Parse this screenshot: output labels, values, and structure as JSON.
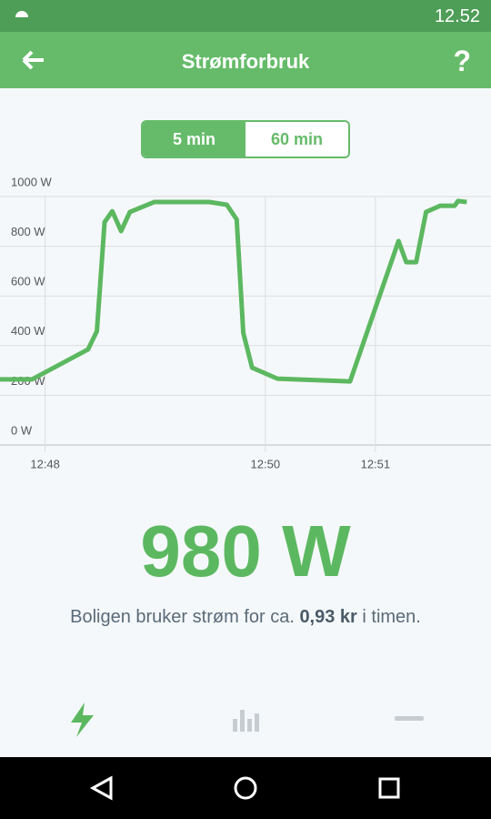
{
  "status_bar": {
    "time": "12.52"
  },
  "header": {
    "title": "Strømforbruk"
  },
  "toggle": {
    "options": [
      "5 min",
      "60 min"
    ]
  },
  "chart_data": {
    "type": "line",
    "x": [
      47.59,
      47.88,
      48.39,
      48.47,
      48.54,
      48.61,
      48.69,
      48.77,
      48.99,
      49.49,
      49.65,
      49.74,
      49.8,
      49.88,
      50.11,
      50.52,
      50.77,
      51.21,
      51.28,
      51.37,
      51.46,
      51.59,
      51.72,
      51.75,
      51.83
    ],
    "values": [
      264,
      264,
      385,
      458,
      897,
      941,
      861,
      938,
      978,
      978,
      967,
      908,
      451,
      311,
      267,
      260,
      256,
      821,
      736,
      736,
      938,
      963,
      963,
      982,
      978
    ],
    "color": "#5cb860",
    "xlim": [
      47.59,
      52.05
    ],
    "xticks": [
      {
        "value": 48,
        "label": "12:48"
      },
      {
        "value": 50,
        "label": "12:50"
      },
      {
        "value": 51,
        "label": "12:51"
      }
    ],
    "ylim": [
      0,
      1000
    ],
    "yticks": [
      {
        "value": 0,
        "label": "0 W"
      },
      {
        "value": 200,
        "label": "200 W"
      },
      {
        "value": 400,
        "label": "400 W"
      },
      {
        "value": 600,
        "label": "600 W"
      },
      {
        "value": 800,
        "label": "800 W"
      },
      {
        "value": 1000,
        "label": "1000 W"
      }
    ],
    "grid": true
  },
  "current": {
    "value": "980 W",
    "sentence": [
      "Boligen bruker strøm for ca. ",
      "0,93 kr",
      " i timen."
    ]
  }
}
